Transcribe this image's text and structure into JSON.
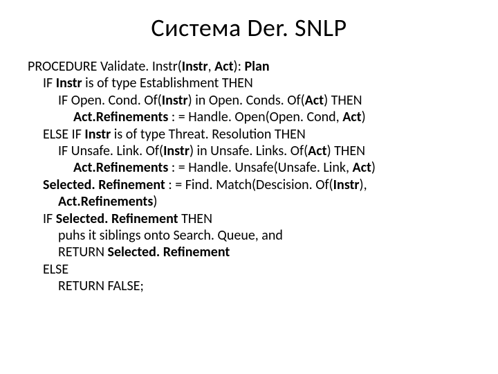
{
  "title": "Система Der. SNLP",
  "colors": {
    "text": "#000000",
    "background": "#ffffff"
  },
  "typography": {
    "title_fontsize": 36,
    "body_fontsize": 20,
    "line_height": 1.22,
    "font_family": "Calibri"
  },
  "code": {
    "l1a": "PROCEDURE Validate. Instr(",
    "l1b": "Instr",
    "l1c": ", ",
    "l1d": "Act",
    "l1e": "): ",
    "l1f": "Plan",
    "l2a": "IF ",
    "l2b": "Instr",
    "l2c": " is of type Establishment THEN",
    "l3a": "IF Open. Cond. Of(",
    "l3b": "Instr",
    "l3c": ") in Open. Conds. Of(",
    "l3d": "Act",
    "l3e": ") THEN",
    "l4a": "Act.Refinements",
    "l4b": " : = Handle. Open(Open. Cond, ",
    "l4c": "Act",
    "l4d": ")",
    "l5a": "ELSE IF ",
    "l5b": "Instr",
    "l5c": " is of type Threat. Resolution THEN",
    "l6a": "IF Unsafe. Link. Of(",
    "l6b": "Instr",
    "l6c": ") in Unsafe. Links. Of(",
    "l6d": "Act",
    "l6e": ") THEN",
    "l7a": "Act.Refinements",
    "l7b": " : = Handle. Unsafe(Unsafe. Link, ",
    "l7c": "Act",
    "l7d": ")",
    "l8a": "Selected. Refinement",
    "l8b": " : = Find. Match(Descision. Of(",
    "l8c": "Instr",
    "l8d": "), ",
    "l9a": "Act.Refinements",
    "l9b": ")",
    "l10a": "IF ",
    "l10b": "Selected. Refinement",
    "l10c": " THEN",
    "l11": "puhs it siblings onto Search. Queue, and",
    "l12a": "RETURN ",
    "l12b": "Selected. Refinement",
    "l13": "ELSE",
    "l14": "RETURN FALSE;"
  }
}
